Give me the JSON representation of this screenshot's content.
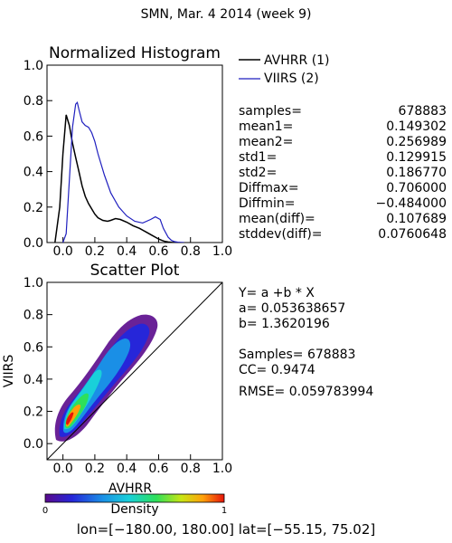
{
  "header": {
    "title": "SMN,  Mar. 4 2014 (week 9)"
  },
  "colors": {
    "avhrr": "#000000",
    "viirs": "#1f1fbf"
  },
  "chart_data": [
    {
      "type": "line",
      "title": "Normalized Histogram",
      "xlim": [
        -0.1,
        1.0
      ],
      "ylim": [
        0.0,
        1.0
      ],
      "xticks": [
        "0.0",
        "0.2",
        "0.4",
        "0.6",
        "0.8",
        "1.0"
      ],
      "yticks": [
        "0.0",
        "0.2",
        "0.4",
        "0.6",
        "0.8",
        "1.0"
      ],
      "legend": [
        {
          "name": "AVHRR (1)",
          "color": "#000000"
        },
        {
          "name": "VIIRS (2)",
          "color": "#1f1fbf"
        }
      ],
      "series": [
        {
          "name": "AVHRR (1)",
          "x": [
            -0.05,
            -0.02,
            0.0,
            0.02,
            0.04,
            0.06,
            0.08,
            0.1,
            0.12,
            0.14,
            0.16,
            0.18,
            0.2,
            0.22,
            0.25,
            0.28,
            0.3,
            0.33,
            0.36,
            0.4,
            0.44,
            0.48,
            0.52,
            0.56,
            0.6,
            0.62,
            0.64,
            0.66,
            0.68,
            0.7
          ],
          "y": [
            0.0,
            0.2,
            0.5,
            0.72,
            0.66,
            0.56,
            0.48,
            0.4,
            0.32,
            0.26,
            0.22,
            0.19,
            0.16,
            0.14,
            0.125,
            0.12,
            0.125,
            0.135,
            0.13,
            0.115,
            0.095,
            0.08,
            0.06,
            0.04,
            0.02,
            0.012,
            0.006,
            0.003,
            0.001,
            0.0
          ]
        },
        {
          "name": "VIIRS (2)",
          "x": [
            0.0,
            0.02,
            0.04,
            0.06,
            0.08,
            0.09,
            0.1,
            0.12,
            0.14,
            0.16,
            0.18,
            0.2,
            0.22,
            0.26,
            0.3,
            0.35,
            0.4,
            0.45,
            0.5,
            0.55,
            0.58,
            0.61,
            0.63,
            0.66,
            0.68,
            0.7,
            0.72,
            0.74,
            0.76
          ],
          "y": [
            0.0,
            0.05,
            0.35,
            0.65,
            0.78,
            0.79,
            0.75,
            0.68,
            0.66,
            0.65,
            0.62,
            0.57,
            0.5,
            0.38,
            0.28,
            0.2,
            0.15,
            0.12,
            0.11,
            0.13,
            0.145,
            0.13,
            0.08,
            0.03,
            0.012,
            0.005,
            0.002,
            0.001,
            0.0
          ]
        }
      ]
    },
    {
      "type": "scatter",
      "title": "Scatter Plot",
      "xlabel": "AVHRR",
      "ylabel": "VIIRS",
      "xlim": [
        -0.1,
        1.0
      ],
      "ylim": [
        -0.1,
        1.0
      ],
      "xticks": [
        "0.0",
        "0.2",
        "0.4",
        "0.6",
        "0.8",
        "1.0"
      ],
      "yticks": [
        "0.0",
        "0.2",
        "0.4",
        "0.6",
        "0.8",
        "1.0"
      ],
      "one_to_one_line": true,
      "colorbar": {
        "label": "Density",
        "min": "0",
        "max": "1"
      }
    }
  ],
  "stats": [
    {
      "label": "samples=",
      "value": "678883"
    },
    {
      "label": "mean1=",
      "value": "0.149302"
    },
    {
      "label": "mean2=",
      "value": "0.256989"
    },
    {
      "label": "std1=",
      "value": "0.129915"
    },
    {
      "label": "std2=",
      "value": "0.186770"
    },
    {
      "label": "Diffmax=",
      "value": "0.706000"
    },
    {
      "label": "Diffmin=",
      "value": "−0.484000"
    },
    {
      "label": "mean(diff)=",
      "value": "0.107689"
    },
    {
      "label": "stddev(diff)=",
      "value": "0.0760648"
    }
  ],
  "regression": {
    "equation": "Y= a +b * X",
    "a": "a= 0.053638657",
    "b": "b= 1.3620196",
    "samples": "Samples= 678883",
    "cc": "CC=  0.9474",
    "rmse": "RMSE= 0.059783994"
  },
  "footer": {
    "domain": "lon=[−180.00, 180.00] lat=[−55.15, 75.02]"
  }
}
